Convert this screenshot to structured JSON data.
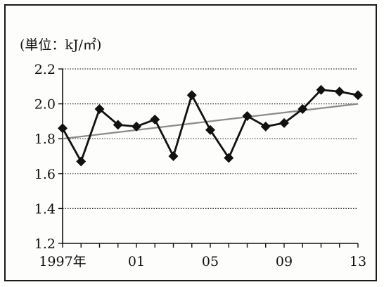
{
  "chart_data": {
    "type": "line",
    "unit_label": "(単位：kJ/㎡)",
    "x": [
      1997,
      1998,
      1999,
      2000,
      2001,
      2002,
      2003,
      2004,
      2005,
      2006,
      2007,
      2008,
      2009,
      2010,
      2011,
      2012,
      2013
    ],
    "x_tick_labels": [
      {
        "x": 1997,
        "label": "1997年"
      },
      {
        "x": 2001,
        "label": "01"
      },
      {
        "x": 2005,
        "label": "05"
      },
      {
        "x": 2009,
        "label": "09"
      },
      {
        "x": 2013,
        "label": "13"
      }
    ],
    "ylim": [
      1.2,
      2.2
    ],
    "y_ticks": [
      1.2,
      1.4,
      1.6,
      1.8,
      2.0,
      2.2
    ],
    "y_tick_labels": [
      "1.2",
      "1.4",
      "1.6",
      "1.8",
      "2.0",
      "2.2"
    ],
    "grid": "horizontal dotted",
    "series": [
      {
        "values": [
          1.86,
          1.67,
          1.97,
          1.88,
          1.87,
          1.91,
          1.7,
          2.05,
          1.85,
          1.69,
          1.93,
          1.87,
          1.89,
          1.97,
          2.08,
          2.07,
          2.05
        ],
        "marker": "diamond",
        "color": "#111111"
      }
    ],
    "trend_line": {
      "x": [
        1997,
        2013
      ],
      "values": [
        1.8,
        2.0
      ],
      "color": "#8a8a8a"
    }
  }
}
